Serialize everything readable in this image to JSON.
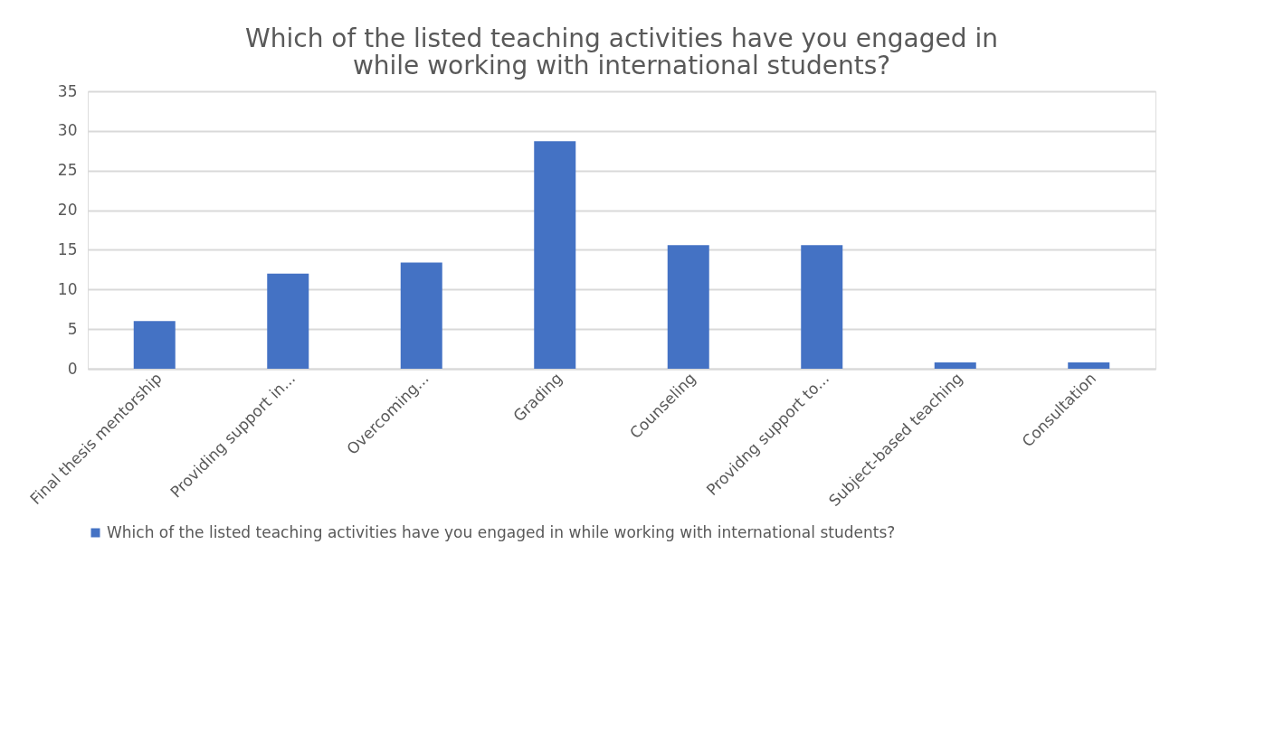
{
  "chart_data": {
    "type": "bar",
    "title": [
      "Which of the listed teaching activities have you engaged in",
      "while working with international students?"
    ],
    "categories": [
      "Final thesis mentorship",
      "Providing support in...",
      "Overcoming...",
      "Grading",
      "Counseling",
      "Providng support to...",
      "Subject-based teaching",
      "Consultation"
    ],
    "series": [
      {
        "name": "Which of the listed teaching activities have you engaged in while working with international students?",
        "color": "#4472c4",
        "values": [
          6,
          12,
          13.4,
          28.7,
          15.6,
          15.6,
          0.8,
          0.8
        ]
      }
    ],
    "ylim": [
      0,
      35
    ],
    "yticks": [
      0,
      5,
      10,
      15,
      20,
      25,
      30,
      35
    ],
    "grid": "y",
    "legend": "bottom"
  }
}
